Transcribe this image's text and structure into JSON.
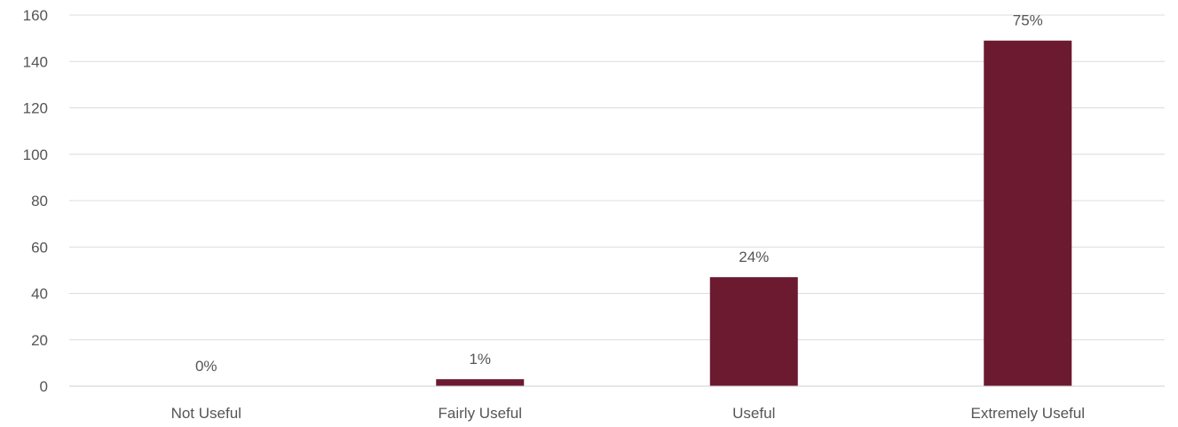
{
  "chart_data": {
    "type": "bar",
    "categories": [
      "Not Useful",
      "Fairly Useful",
      "Useful",
      "Extremely Useful"
    ],
    "values": [
      0,
      3,
      47,
      149
    ],
    "data_labels": [
      "0%",
      "1%",
      "24%",
      "75%"
    ],
    "ylim": [
      0,
      160
    ],
    "yticks": [
      0,
      20,
      40,
      60,
      80,
      100,
      120,
      140,
      160
    ],
    "title": "",
    "xlabel": "",
    "ylabel": "",
    "grid": true,
    "legend": "none",
    "bar_color": "#6b1a30"
  }
}
